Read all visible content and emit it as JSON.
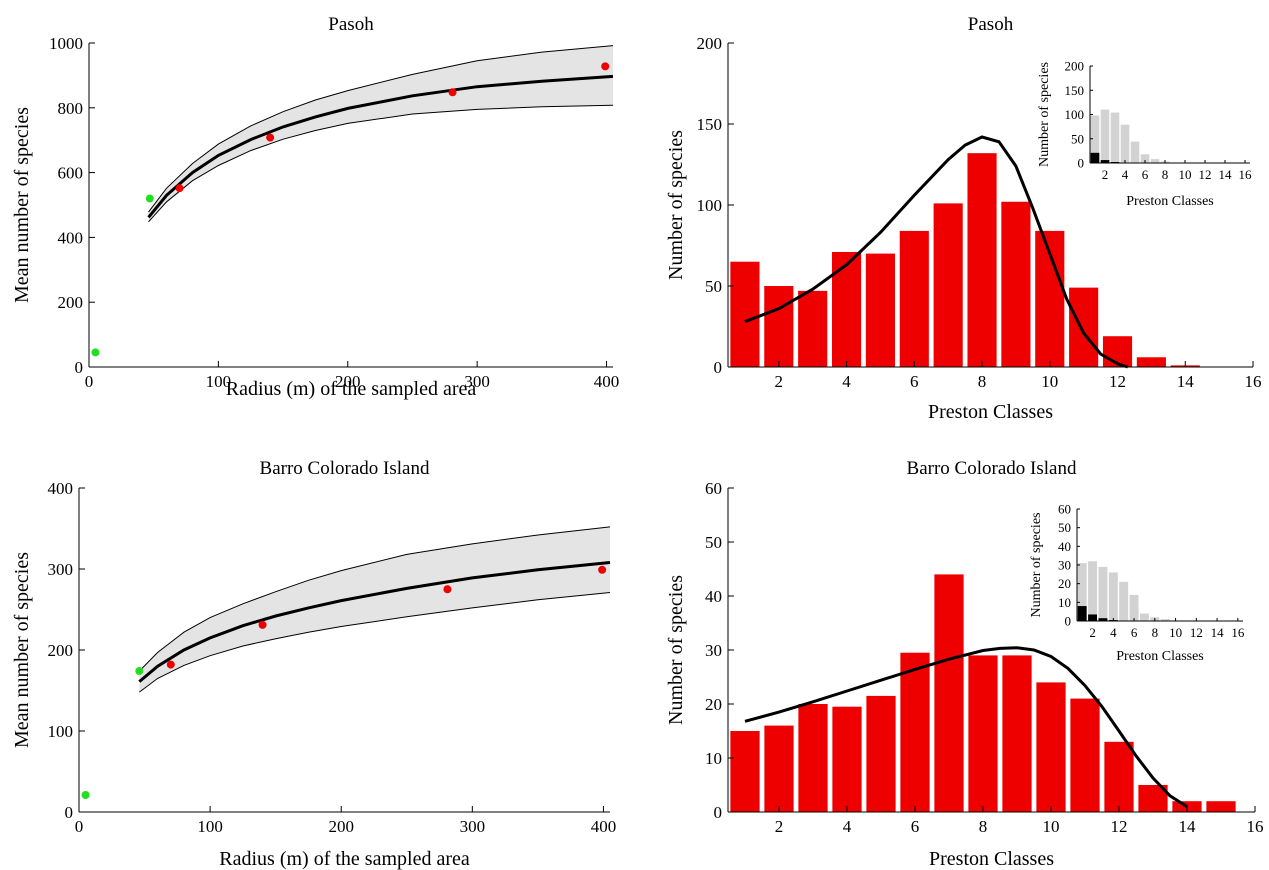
{
  "colors": {
    "observed": "#ee0000",
    "validation": "#22dd22",
    "band_fill": "#e4e4e4",
    "bar": "#ee0000",
    "inset_gray": "#d2d2d2",
    "inset_black": "#000000",
    "curve": "#000000"
  },
  "chart_data": [
    {
      "id": "pasoh_sar",
      "type": "line",
      "title": "Pasoh",
      "xlabel": "Radius (m) of the sampled area",
      "ylabel": "Mean number of species",
      "xlim": [
        0,
        405
      ],
      "ylim": [
        0,
        1000
      ],
      "xticks": [
        0,
        100,
        200,
        300,
        400
      ],
      "yticks": [
        0,
        200,
        400,
        600,
        800,
        1000
      ],
      "grid": false,
      "fit": {
        "x": [
          46,
          60,
          80,
          100,
          125,
          150,
          175,
          200,
          250,
          300,
          350,
          405
        ],
        "mean": [
          462,
          530,
          600,
          653,
          702,
          741,
          772,
          798,
          837,
          865,
          882,
          897
        ],
        "lower": [
          448,
          510,
          575,
          622,
          668,
          703,
          730,
          752,
          781,
          795,
          803,
          808
        ],
        "upper": [
          478,
          552,
          628,
          688,
          744,
          788,
          824,
          853,
          903,
          945,
          972,
          992
        ]
      },
      "observed_points": {
        "x": [
          70,
          140,
          281,
          399
        ],
        "y": [
          552,
          708,
          848,
          928
        ]
      },
      "validation_points": {
        "x": [
          5,
          47
        ],
        "y": [
          45,
          520
        ]
      }
    },
    {
      "id": "pasoh_preston",
      "type": "bar",
      "title": "Pasoh",
      "xlabel": "Preston Classes",
      "ylabel": "Number of species",
      "xlim": [
        0.5,
        16
      ],
      "ylim": [
        0,
        200
      ],
      "xticks": [
        2,
        4,
        6,
        8,
        10,
        12,
        14,
        16
      ],
      "yticks": [
        0,
        50,
        100,
        150,
        200
      ],
      "grid": false,
      "categories": [
        1,
        2,
        3,
        4,
        5,
        6,
        7,
        8,
        9,
        10,
        11,
        12,
        13,
        14
      ],
      "values": [
        65,
        50,
        47,
        71,
        70,
        84,
        101,
        132,
        102,
        84,
        49,
        19,
        6,
        1
      ],
      "fit_curve": {
        "x": [
          1,
          2,
          3,
          4,
          5,
          6,
          7,
          7.5,
          8,
          8.5,
          9,
          9.5,
          10,
          10.5,
          11,
          11.5,
          12,
          12.3
        ],
        "y": [
          28,
          36,
          48,
          63,
          83,
          106,
          128,
          137,
          142,
          139,
          124,
          98,
          70,
          42,
          21,
          8,
          2,
          0
        ]
      },
      "inset": {
        "xlabel": "Preston Classes",
        "ylabel": "Number of species",
        "xlim": [
          0.5,
          16.5
        ],
        "ylim": [
          0,
          200
        ],
        "xticks": [
          2,
          4,
          6,
          8,
          10,
          12,
          14,
          16
        ],
        "yticks": [
          0,
          50,
          100,
          150,
          200
        ],
        "categories": [
          1,
          2,
          3,
          4,
          5,
          6,
          7,
          8,
          9,
          10,
          11,
          12,
          13,
          14,
          15,
          16
        ],
        "gray_values": [
          98,
          110,
          104,
          79,
          44,
          18,
          8,
          3,
          1,
          1,
          0,
          0,
          0,
          0,
          0,
          0
        ],
        "black_values": [
          21,
          6,
          2,
          1,
          0,
          0,
          0,
          0,
          0,
          0,
          0,
          0,
          0,
          0,
          0,
          0
        ]
      }
    },
    {
      "id": "bci_sar",
      "type": "line",
      "title": "Barro Colorado Island",
      "xlabel": "Radius (m) of the sampled area",
      "ylabel": "Mean number of species",
      "xlim": [
        0,
        405
      ],
      "ylim": [
        0,
        400
      ],
      "xticks": [
        0,
        100,
        200,
        300,
        400
      ],
      "yticks": [
        0,
        100,
        200,
        300,
        400
      ],
      "grid": false,
      "fit": {
        "x": [
          46,
          60,
          80,
          100,
          125,
          150,
          175,
          200,
          250,
          300,
          350,
          405
        ],
        "mean": [
          161,
          180,
          200,
          215,
          230,
          242,
          252,
          261,
          276,
          289,
          299,
          308
        ],
        "lower": [
          148,
          165,
          181,
          193,
          205,
          214,
          222,
          229,
          241,
          252,
          262,
          271
        ],
        "upper": [
          174,
          197,
          222,
          240,
          257,
          272,
          286,
          298,
          318,
          331,
          342,
          352
        ]
      },
      "observed_points": {
        "x": [
          70,
          140,
          281,
          399
        ],
        "y": [
          182,
          231,
          275,
          299
        ]
      },
      "validation_points": {
        "x": [
          5,
          46
        ],
        "y": [
          21,
          174
        ]
      }
    },
    {
      "id": "bci_preston",
      "type": "bar",
      "title": "Barro Colorado Island",
      "xlabel": "Preston Classes",
      "ylabel": "Number of species",
      "xlim": [
        0.5,
        16
      ],
      "ylim": [
        0,
        60
      ],
      "xticks": [
        2,
        4,
        6,
        8,
        10,
        12,
        14,
        16
      ],
      "yticks": [
        0,
        10,
        20,
        30,
        40,
        50,
        60
      ],
      "grid": false,
      "categories": [
        1,
        2,
        3,
        4,
        5,
        6,
        7,
        8,
        9,
        10,
        11,
        12,
        13,
        14,
        15
      ],
      "values": [
        15,
        16,
        20,
        19.5,
        21.5,
        29.5,
        44,
        29,
        29,
        24,
        21,
        13,
        5,
        2,
        2
      ],
      "fit_curve": {
        "x": [
          1,
          2,
          3,
          4,
          5,
          6,
          7,
          8,
          8.5,
          9,
          9.5,
          10,
          10.5,
          11,
          11.5,
          12,
          12.5,
          13,
          13.5,
          14
        ],
        "y": [
          16.8,
          18.5,
          20.4,
          22.4,
          24.4,
          26.4,
          28.3,
          29.9,
          30.3,
          30.4,
          30.0,
          28.8,
          26.6,
          23.4,
          19.5,
          15.0,
          10.4,
          6.3,
          3.0,
          1.0
        ]
      },
      "inset": {
        "xlabel": "Preston Classes",
        "ylabel": "Number of species",
        "xlim": [
          0.5,
          16.5
        ],
        "ylim": [
          0,
          60
        ],
        "xticks": [
          2,
          4,
          6,
          8,
          10,
          12,
          14,
          16
        ],
        "yticks": [
          0,
          10,
          20,
          30,
          40,
          50,
          60
        ],
        "categories": [
          1,
          2,
          3,
          4,
          5,
          6,
          7,
          8,
          9,
          10,
          11,
          12,
          13,
          14,
          15,
          16
        ],
        "gray_values": [
          31,
          32,
          29,
          26,
          21,
          14,
          4,
          2,
          1,
          0,
          0,
          0,
          0,
          0,
          0,
          0
        ],
        "black_values": [
          8,
          3.5,
          1.5,
          0.5,
          0,
          0,
          0,
          0,
          0,
          0,
          0,
          0,
          0,
          0,
          0,
          0
        ]
      }
    }
  ]
}
